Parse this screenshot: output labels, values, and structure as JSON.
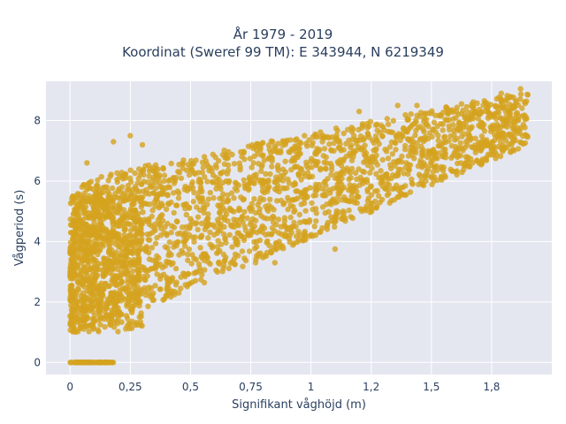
{
  "chart_data": {
    "type": "scatter",
    "title": [
      "År 1979 - 2019",
      "Koordinat (Sweref 99 TM): E 343944, N 6219349"
    ],
    "xlabel": "Signifikant våghöjd (m)",
    "ylabel": "Vågperiod (s)",
    "xlim": [
      -0.1,
      2.0
    ],
    "ylim": [
      -0.4,
      9.3
    ],
    "xticks": [
      0,
      0.25,
      0.5,
      0.75,
      1,
      1.25,
      1.5,
      1.75
    ],
    "xtick_labels": [
      "0",
      "0,25",
      "0,5",
      "0,75",
      "1",
      "1,2",
      "1,5",
      "1,8"
    ],
    "yticks": [
      0,
      2,
      4,
      6,
      8
    ],
    "ytick_labels": [
      "0",
      "2",
      "4",
      "6",
      "8"
    ],
    "grid": true,
    "legend": "none",
    "colors": {
      "marker": "#D4A21E",
      "plot_bg": "#E5E7F0",
      "grid": "#ffffff"
    },
    "point_clusters": [
      {
        "x": [
          0.0,
          0.18
        ],
        "y": [
          0.0,
          0.0
        ]
      },
      {
        "x": [
          0.0,
          0.35
        ],
        "y": [
          1.0,
          6.2
        ]
      },
      {
        "x": [
          0.2,
          0.7
        ],
        "y": [
          2.0,
          6.8
        ]
      },
      {
        "x": [
          0.6,
          1.1
        ],
        "y": [
          3.5,
          7.5
        ]
      },
      {
        "x": [
          1.0,
          1.55
        ],
        "y": [
          5.3,
          8.2
        ]
      },
      {
        "x": [
          1.5,
          1.9
        ],
        "y": [
          6.8,
          9.0
        ]
      }
    ],
    "outliers": [
      {
        "x": 0.18,
        "y": 7.3
      },
      {
        "x": 0.25,
        "y": 7.5
      },
      {
        "x": 0.07,
        "y": 6.6
      },
      {
        "x": 1.1,
        "y": 3.75
      },
      {
        "x": 0.85,
        "y": 3.3
      },
      {
        "x": 1.36,
        "y": 8.5
      },
      {
        "x": 1.44,
        "y": 8.5
      },
      {
        "x": 1.2,
        "y": 8.3
      },
      {
        "x": 1.87,
        "y": 9.05
      },
      {
        "x": 1.9,
        "y": 8.85
      },
      {
        "x": 1.79,
        "y": 8.9
      },
      {
        "x": 1.72,
        "y": 8.65
      },
      {
        "x": 0.77,
        "y": 3.3
      },
      {
        "x": 0.3,
        "y": 7.2
      },
      {
        "x": 1.6,
        "y": 7.0
      },
      {
        "x": 0.92,
        "y": 4.3
      },
      {
        "x": 1.52,
        "y": 6.5
      }
    ]
  }
}
